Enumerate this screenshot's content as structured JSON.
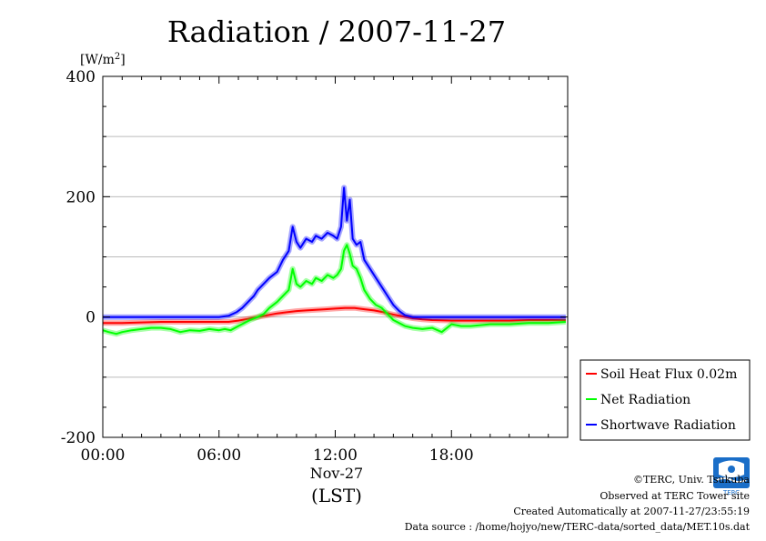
{
  "chart_data": {
    "type": "line",
    "title": "Radiation / 2007-11-27",
    "ylabel": "[W/m²]",
    "ylabel_main": "[W/m",
    "ylabel_sup": "2",
    "ylabel_end": "]",
    "xlabel": "(LST)",
    "x_date_label": "Nov-27",
    "ylim": [
      -200,
      400
    ],
    "xlim": [
      0,
      24
    ],
    "y_ticks": [
      -200,
      0,
      200,
      400
    ],
    "y_tick_labels": [
      "-200",
      "0",
      "200",
      "400"
    ],
    "y_gridlines": [
      -100,
      100,
      300
    ],
    "x_ticks": [
      0,
      6,
      12,
      18
    ],
    "x_tick_labels": [
      "00:00",
      "06:00",
      "12:00",
      "18:00"
    ],
    "grid": true,
    "legend_position": "right-bottom",
    "series": [
      {
        "name": "Soil Heat Flux 0.02m",
        "color": "#ff0000",
        "x": [
          0,
          1,
          2,
          3,
          4,
          5,
          6,
          6.5,
          7,
          7.5,
          8,
          8.5,
          9,
          9.5,
          10,
          10.5,
          11,
          11.5,
          12,
          12.5,
          13,
          13.5,
          14,
          14.5,
          15,
          15.5,
          16,
          16.5,
          17,
          18,
          19,
          20,
          21,
          22,
          23,
          23.9
        ],
        "values": [
          -10,
          -10,
          -9,
          -8,
          -8,
          -8,
          -8,
          -8,
          -6,
          -3,
          0,
          3,
          6,
          8,
          10,
          11,
          12,
          13,
          14,
          15,
          15,
          13,
          11,
          8,
          4,
          1,
          -2,
          -4,
          -5,
          -6,
          -6,
          -6,
          -6,
          -5,
          -5,
          -5
        ]
      },
      {
        "name": "Net Radiation",
        "color": "#00ff00",
        "x": [
          0,
          0.3,
          0.7,
          1,
          1.5,
          2,
          2.5,
          3,
          3.5,
          4,
          4.5,
          5,
          5.5,
          6,
          6.3,
          6.6,
          7,
          7.3,
          7.6,
          8,
          8.3,
          8.6,
          9,
          9.3,
          9.6,
          9.8,
          10,
          10.2,
          10.5,
          10.8,
          11,
          11.3,
          11.6,
          11.9,
          12.1,
          12.3,
          12.45,
          12.6,
          12.75,
          12.9,
          13.1,
          13.3,
          13.5,
          13.8,
          14.1,
          14.4,
          14.7,
          15,
          15.3,
          15.6,
          16,
          16.5,
          17,
          17.5,
          18,
          18.5,
          19,
          20,
          21,
          22,
          23,
          23.9
        ],
        "values": [
          -22,
          -25,
          -28,
          -25,
          -22,
          -20,
          -18,
          -18,
          -20,
          -25,
          -22,
          -23,
          -20,
          -22,
          -20,
          -22,
          -15,
          -10,
          -5,
          0,
          5,
          15,
          25,
          35,
          45,
          80,
          55,
          50,
          60,
          55,
          65,
          60,
          70,
          65,
          70,
          80,
          110,
          120,
          105,
          85,
          80,
          65,
          45,
          30,
          20,
          15,
          5,
          -5,
          -10,
          -15,
          -18,
          -20,
          -18,
          -25,
          -12,
          -15,
          -15,
          -12,
          -12,
          -10,
          -10,
          -8
        ]
      },
      {
        "name": "Shortwave Radiation",
        "color": "#0000ff",
        "x": [
          0,
          1,
          2,
          3,
          4,
          5,
          6,
          6.5,
          6.9,
          7.2,
          7.5,
          7.8,
          8,
          8.3,
          8.6,
          9,
          9.3,
          9.6,
          9.8,
          10,
          10.2,
          10.5,
          10.8,
          11,
          11.3,
          11.6,
          11.9,
          12.1,
          12.3,
          12.45,
          12.6,
          12.75,
          12.9,
          13.1,
          13.3,
          13.5,
          13.8,
          14.1,
          14.4,
          14.7,
          15,
          15.3,
          15.6,
          16,
          16.5,
          17,
          18,
          19,
          20,
          21,
          22,
          23,
          23.9
        ],
        "values": [
          0,
          0,
          0,
          0,
          0,
          0,
          0,
          2,
          8,
          15,
          25,
          35,
          45,
          55,
          65,
          75,
          95,
          110,
          150,
          125,
          115,
          130,
          125,
          135,
          130,
          140,
          135,
          130,
          150,
          215,
          160,
          195,
          130,
          120,
          125,
          95,
          80,
          65,
          50,
          35,
          20,
          10,
          3,
          0,
          0,
          0,
          0,
          0,
          0,
          0,
          0,
          0,
          0
        ]
      }
    ]
  },
  "credits": {
    "line1": "©TERC, Univ. Tsukuba",
    "line2": "Observed at TERC Tower site",
    "line3": "Created Automatically at 2007-11-27/23:55:19",
    "line4": "Data source : /home/hojyo/new/TERC-data/sorted_data/MET.10s.dat"
  },
  "logo": {
    "text": "TERC",
    "color": "#1a6ec8",
    "icon": "terc-logo-icon"
  }
}
